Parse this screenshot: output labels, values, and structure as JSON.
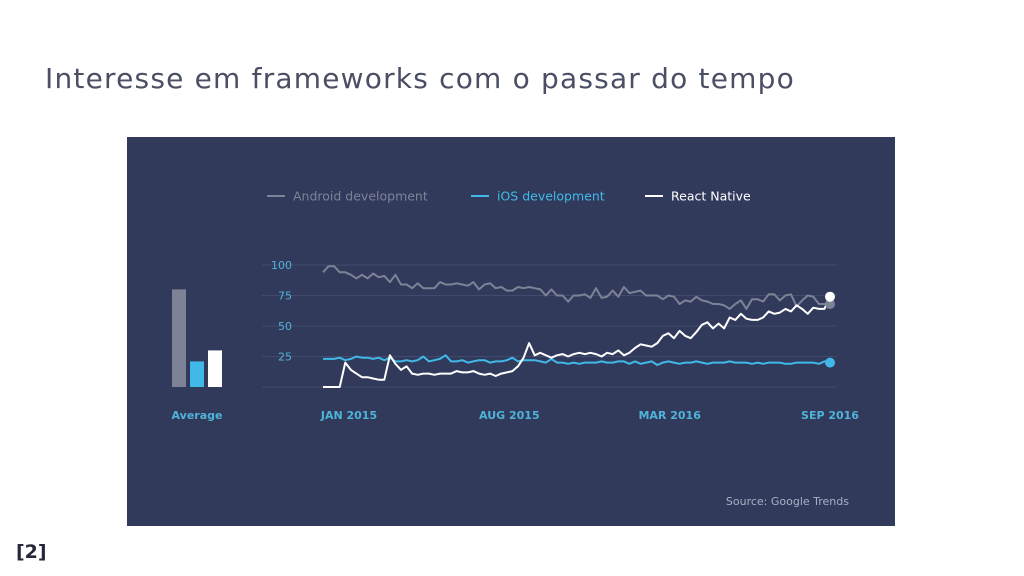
{
  "slide": {
    "title": "Interesse em frameworks com o passar do tempo",
    "footnote": "[2]"
  },
  "colors": {
    "panel": "#313a5b",
    "grid": "#424b6e",
    "android": "#7d8296",
    "ios": "#41b9e8",
    "react": "#ffffff",
    "tick_text": "#4fb3d9"
  },
  "chart_data": [
    {
      "type": "line",
      "legend_position": "top",
      "grid": true,
      "ylim": [
        0,
        100
      ],
      "yticks": [
        "100",
        "75",
        "50",
        "25"
      ],
      "x_tick_labels": [
        "JAN 2015",
        "AUG 2015",
        "MAR 2016",
        "SEP 2016"
      ],
      "source": "Source: Google Trends",
      "n_points": 92,
      "series": [
        {
          "name": "Android development",
          "values": [
            94,
            99,
            99,
            94,
            94,
            92,
            89,
            92,
            89,
            93,
            90,
            91,
            86,
            92,
            84,
            84,
            81,
            85,
            81,
            81,
            81,
            86,
            84,
            84,
            85,
            84,
            83,
            86,
            80,
            84,
            85,
            81,
            82,
            79,
            79,
            82,
            81,
            82,
            81,
            80,
            75,
            80,
            75,
            75,
            70,
            75,
            75,
            76,
            73,
            81,
            73,
            74,
            79,
            74,
            82,
            77,
            78,
            79,
            75,
            75,
            75,
            72,
            75,
            74,
            68,
            71,
            70,
            74,
            71,
            70,
            68,
            68,
            67,
            64,
            68,
            71,
            64,
            72,
            72,
            70,
            76,
            76,
            71,
            75,
            76,
            66,
            71,
            75,
            74,
            68,
            68,
            68
          ]
        },
        {
          "name": "iOS development",
          "values": [
            23,
            23,
            23,
            24,
            22,
            23,
            25,
            24,
            24,
            23,
            24,
            22,
            24,
            21,
            21,
            22,
            21,
            22,
            25,
            21,
            22,
            23,
            26,
            21,
            21,
            22,
            20,
            21,
            22,
            22,
            20,
            21,
            21,
            22,
            24,
            21,
            22,
            22,
            22,
            21,
            20,
            23,
            20,
            20,
            19,
            20,
            19,
            20,
            20,
            20,
            21,
            20,
            20,
            21,
            21,
            19,
            21,
            19,
            20,
            21,
            18,
            20,
            21,
            20,
            19,
            20,
            20,
            21,
            20,
            19,
            20,
            20,
            20,
            21,
            20,
            20,
            20,
            19,
            20,
            19,
            20,
            20,
            20,
            19,
            19,
            20,
            20,
            20,
            20,
            19,
            21,
            20
          ]
        },
        {
          "name": "React Native",
          "values": [
            0,
            0,
            0,
            0,
            20,
            14,
            11,
            8,
            8,
            7,
            6,
            6,
            26,
            19,
            14,
            17,
            11,
            10,
            11,
            11,
            10,
            11,
            11,
            11,
            13,
            12,
            12,
            13,
            11,
            10,
            11,
            9,
            11,
            12,
            13,
            17,
            24,
            36,
            26,
            28,
            26,
            24,
            26,
            27,
            25,
            27,
            28,
            27,
            28,
            27,
            25,
            28,
            27,
            30,
            26,
            28,
            32,
            35,
            34,
            33,
            36,
            42,
            44,
            40,
            46,
            42,
            40,
            45,
            51,
            53,
            48,
            52,
            48,
            57,
            55,
            60,
            56,
            55,
            55,
            57,
            62,
            60,
            61,
            64,
            62,
            67,
            64,
            60,
            65,
            64,
            64,
            74
          ]
        },
        {
          "name": "Average",
          "type": "bar",
          "categories": [
            "Android development",
            "iOS development",
            "React Native"
          ],
          "values": [
            80,
            21,
            30
          ],
          "label": "Average"
        }
      ]
    }
  ]
}
